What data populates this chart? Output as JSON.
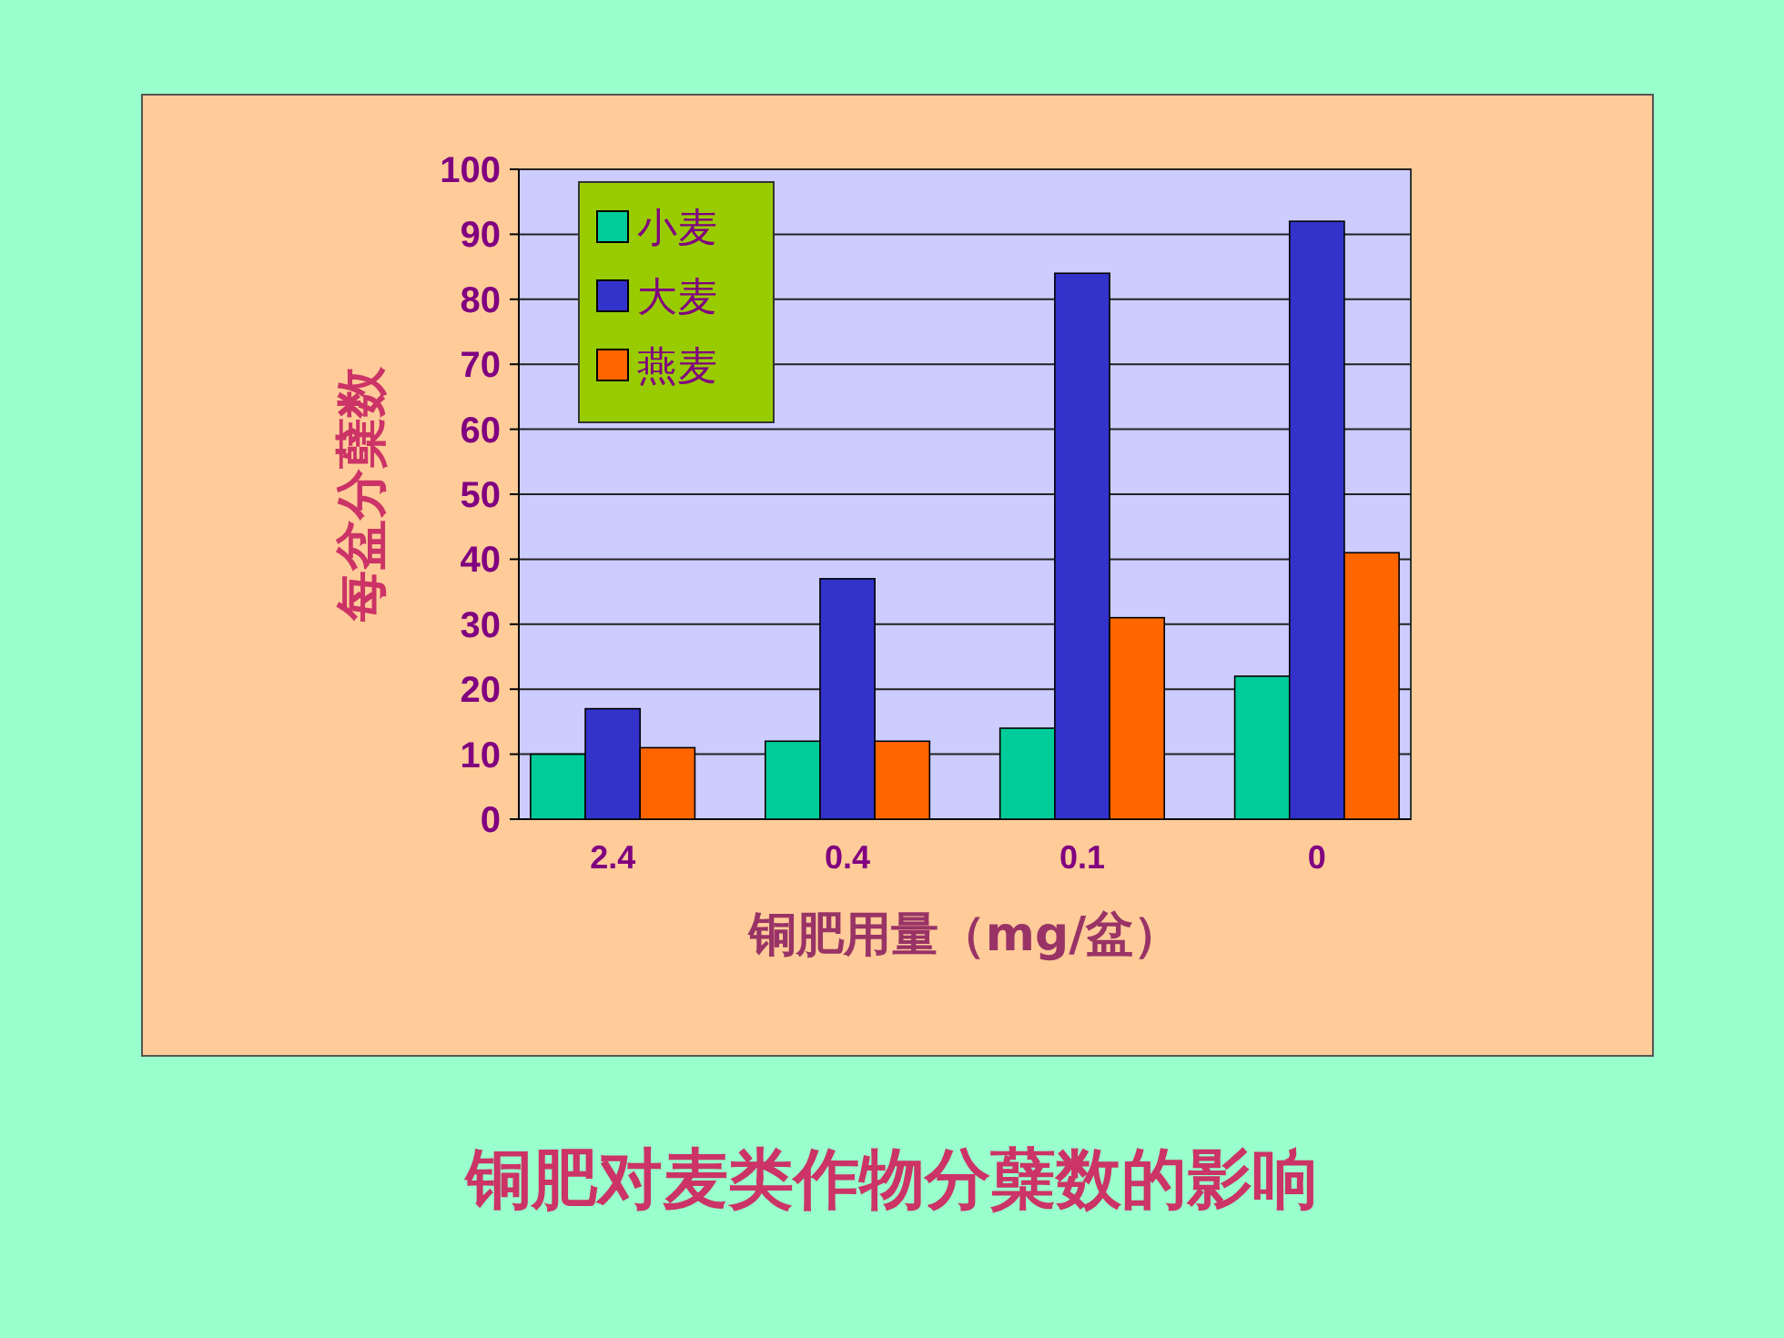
{
  "chart_data": {
    "type": "bar",
    "title": "铜肥对麦类作物分蘖数的影响",
    "xlabel": "铜肥用量（mg/盆）",
    "ylabel": "每盆分蘖数",
    "categories": [
      "2.4",
      "0.4",
      "0.1",
      "0"
    ],
    "series": [
      {
        "name": "小麦",
        "color": "#00cc99",
        "values": [
          10,
          12,
          14,
          22
        ]
      },
      {
        "name": "大麦",
        "color": "#3333cc",
        "values": [
          17,
          37,
          84,
          92
        ]
      },
      {
        "name": "燕麦",
        "color": "#ff6600",
        "values": [
          11,
          12,
          31,
          41
        ]
      }
    ],
    "ylim": [
      0,
      100
    ],
    "yticks": [
      0,
      10,
      20,
      30,
      40,
      50,
      60,
      70,
      80,
      90,
      100
    ],
    "grid": "y",
    "legend": "top left"
  }
}
